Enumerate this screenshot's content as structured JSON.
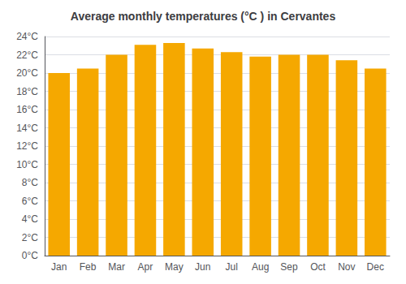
{
  "chart_data": {
    "type": "bar",
    "title": "Average monthly temperatures (°C ) in Cervantes",
    "categories": [
      "Jan",
      "Feb",
      "Mar",
      "Apr",
      "May",
      "Jun",
      "Jul",
      "Aug",
      "Sep",
      "Oct",
      "Nov",
      "Dec"
    ],
    "values": [
      20.0,
      20.5,
      22.0,
      23.1,
      23.3,
      22.7,
      22.3,
      21.8,
      22.0,
      22.0,
      21.4,
      20.5
    ],
    "color": "#F5A800",
    "ylim": [
      0,
      24
    ],
    "yticks": [
      {
        "value": 0,
        "label": "0°C"
      },
      {
        "value": 2,
        "label": "2°C"
      },
      {
        "value": 4,
        "label": "4°C"
      },
      {
        "value": 6,
        "label": "6°C"
      },
      {
        "value": 8,
        "label": "8°C"
      },
      {
        "value": 10,
        "label": "10°C"
      },
      {
        "value": 12,
        "label": "12°C"
      },
      {
        "value": 14,
        "label": "14°C"
      },
      {
        "value": 16,
        "label": "16°C"
      },
      {
        "value": 18,
        "label": "18°C"
      },
      {
        "value": 20,
        "label": "20°C"
      },
      {
        "value": 22,
        "label": "22°C"
      },
      {
        "value": 24,
        "label": "24°C"
      }
    ],
    "grid": true
  }
}
